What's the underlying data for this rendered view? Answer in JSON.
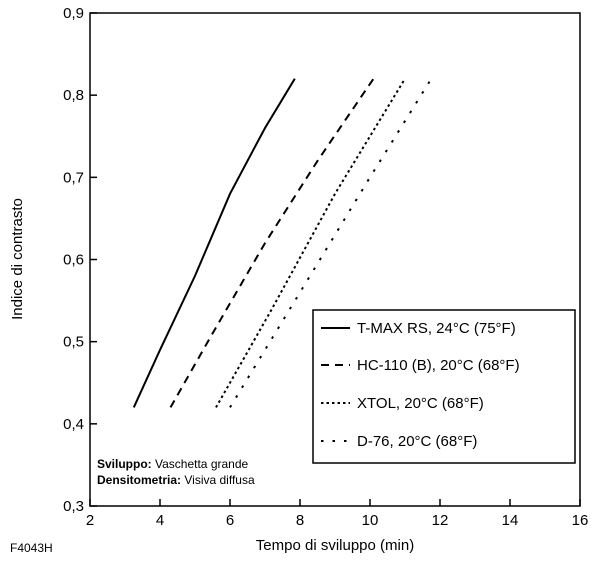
{
  "chart_data": {
    "type": "line",
    "xlabel": "Tempo di sviluppo (min)",
    "ylabel": "Indice di contrasto",
    "xlim": [
      2,
      16
    ],
    "ylim": [
      0.3,
      0.9
    ],
    "x_ticks": [
      "2",
      "4",
      "6",
      "8",
      "10",
      "12",
      "14",
      "16"
    ],
    "y_ticks": [
      "0,3",
      "0,4",
      "0,5",
      "0,6",
      "0,7",
      "0,8",
      "0,9"
    ],
    "grid": false,
    "legend_position": "lower-right",
    "series": [
      {
        "name": "T-MAX RS, 24°C (75°F)",
        "style": "solid",
        "points": [
          [
            3.25,
            0.42
          ],
          [
            4.0,
            0.49
          ],
          [
            5.0,
            0.58
          ],
          [
            6.0,
            0.68
          ],
          [
            7.0,
            0.76
          ],
          [
            7.85,
            0.82
          ]
        ]
      },
      {
        "name": "HC-110 (B), 20°C (68°F)",
        "style": "dashed",
        "points": [
          [
            4.3,
            0.42
          ],
          [
            5.5,
            0.51
          ],
          [
            7.0,
            0.62
          ],
          [
            8.5,
            0.72
          ],
          [
            10.1,
            0.82
          ]
        ]
      },
      {
        "name": "XTOL, 20°C (68°F)",
        "style": "dotted",
        "points": [
          [
            5.6,
            0.42
          ],
          [
            7.2,
            0.54
          ],
          [
            9.0,
            0.68
          ],
          [
            11.0,
            0.82
          ]
        ]
      },
      {
        "name": "D-76, 20°C (68°F)",
        "style": "sparse-dotted",
        "points": [
          [
            6.0,
            0.42
          ],
          [
            8.0,
            0.56
          ],
          [
            10.0,
            0.7
          ],
          [
            11.75,
            0.82
          ]
        ]
      }
    ]
  },
  "notes": [
    {
      "label": "Sviluppo:",
      "text": " Vaschetta grande"
    },
    {
      "label": "Densitometria:",
      "text": " Visiva diffusa"
    }
  ],
  "figure_id": "F4043H"
}
